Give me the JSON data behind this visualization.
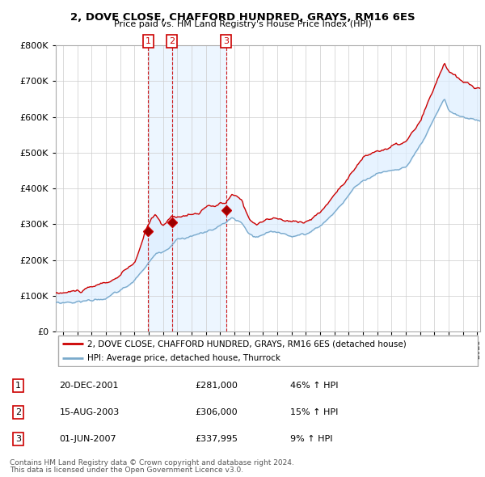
{
  "title": "2, DOVE CLOSE, CHAFFORD HUNDRED, GRAYS, RM16 6ES",
  "subtitle": "Price paid vs. HM Land Registry's House Price Index (HPI)",
  "legend_line1": "2, DOVE CLOSE, CHAFFORD HUNDRED, GRAYS, RM16 6ES (detached house)",
  "legend_line2": "HPI: Average price, detached house, Thurrock",
  "footnote1": "Contains HM Land Registry data © Crown copyright and database right 2024.",
  "footnote2": "This data is licensed under the Open Government Licence v3.0.",
  "table_rows": [
    {
      "num": "1",
      "date": "20-DEC-2001",
      "price": "£281,000",
      "change": "46% ↑ HPI"
    },
    {
      "num": "2",
      "date": "15-AUG-2003",
      "price": "£306,000",
      "change": "15% ↑ HPI"
    },
    {
      "num": "3",
      "date": "01-JUN-2007",
      "price": "£337,995",
      "change": "9% ↑ HPI"
    }
  ],
  "sale_dates": [
    2001.97,
    2003.62,
    2007.42
  ],
  "sale_prices": [
    281000,
    306000,
    337995
  ],
  "red_color": "#cc0000",
  "blue_color": "#7aaacc",
  "fill_color": "#ddeeff",
  "vline_color": "#cc0000",
  "ylim": [
    0,
    800000
  ],
  "xlim": [
    1995.5,
    2025.2
  ],
  "yticks": [
    0,
    100000,
    200000,
    300000,
    400000,
    500000,
    600000,
    700000,
    800000
  ],
  "xticks": [
    1996,
    1997,
    1998,
    1999,
    2000,
    2001,
    2002,
    2003,
    2004,
    2005,
    2006,
    2007,
    2008,
    2009,
    2010,
    2011,
    2012,
    2013,
    2014,
    2015,
    2016,
    2017,
    2018,
    2019,
    2020,
    2021,
    2022,
    2023,
    2024,
    2025
  ]
}
